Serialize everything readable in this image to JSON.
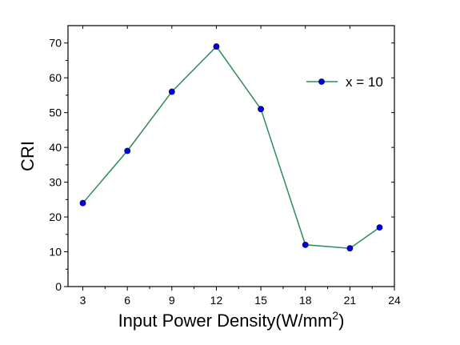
{
  "chart_data": {
    "type": "line",
    "xlabel": "Input Power Density(W/mm",
    "xlabel_sup": "2",
    "xlabel_close": ")",
    "ylabel": "CRI",
    "xlim": [
      2,
      24
    ],
    "ylim": [
      0,
      75
    ],
    "xticks": [
      3,
      6,
      9,
      12,
      15,
      18,
      21,
      24
    ],
    "yticks": [
      0,
      10,
      20,
      30,
      40,
      50,
      60,
      70
    ],
    "grid": false,
    "legend_position": "top-right",
    "series": [
      {
        "name": "x = 10",
        "line_color": "#2e8b57",
        "marker_color": "#0000e0",
        "x": [
          3,
          6,
          9,
          12,
          15,
          18,
          21,
          23
        ],
        "y": [
          24,
          39,
          56,
          69,
          51,
          12,
          11,
          17
        ]
      }
    ]
  }
}
